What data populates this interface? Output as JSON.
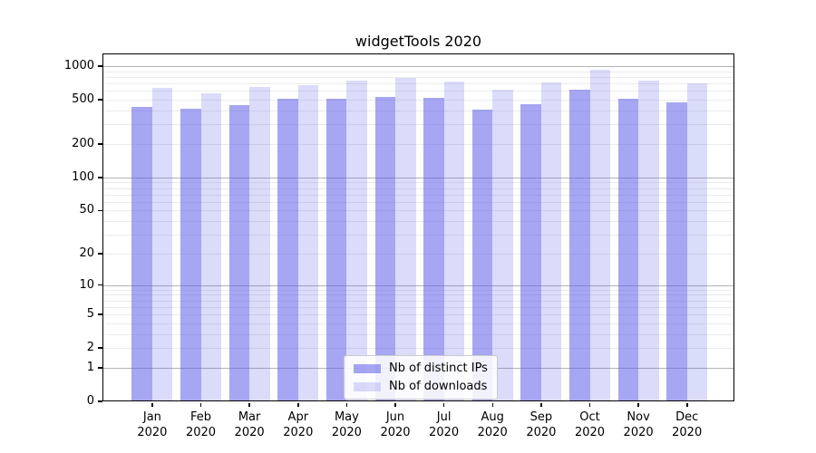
{
  "chart_data": {
    "type": "bar",
    "title": "widgetTools 2020",
    "categories": [
      "Jan",
      "Feb",
      "Mar",
      "Apr",
      "May",
      "Jun",
      "Jul",
      "Aug",
      "Sep",
      "Oct",
      "Nov",
      "Dec"
    ],
    "year_label": "2020",
    "series": [
      {
        "name": "Nb of distinct IPs",
        "color": "rgba(92,92,232,0.55)",
        "values": [
          430,
          415,
          450,
          510,
          510,
          530,
          520,
          410,
          455,
          610,
          510,
          470
        ]
      },
      {
        "name": "Nb of downloads",
        "color": "rgba(92,92,232,0.22)",
        "values": [
          640,
          570,
          650,
          675,
          740,
          790,
          730,
          615,
          715,
          925,
          740,
          700
        ]
      }
    ],
    "y_axis": {
      "scale": "log10(1+v)",
      "tick_values": [
        0,
        1,
        2,
        5,
        10,
        20,
        50,
        100,
        200,
        500,
        1000
      ],
      "major_gridlines": [
        1,
        10,
        100,
        1000
      ],
      "minor_gridlines": [
        2,
        3,
        4,
        5,
        6,
        7,
        8,
        9,
        20,
        30,
        40,
        50,
        60,
        70,
        80,
        90,
        200,
        300,
        400,
        500,
        600,
        700,
        800,
        900
      ],
      "ylim_top": 1300
    },
    "legend": {
      "position": "lower center"
    },
    "grid": "on",
    "colors": {
      "bar_distinct_ips": "rgba(92,92,232,0.55)",
      "bar_downloads": "rgba(92,92,232,0.22)",
      "grid_major": "#b3b3b3",
      "grid_minor": "#ebebeb",
      "axis": "#000000",
      "background": "#ffffff"
    }
  }
}
